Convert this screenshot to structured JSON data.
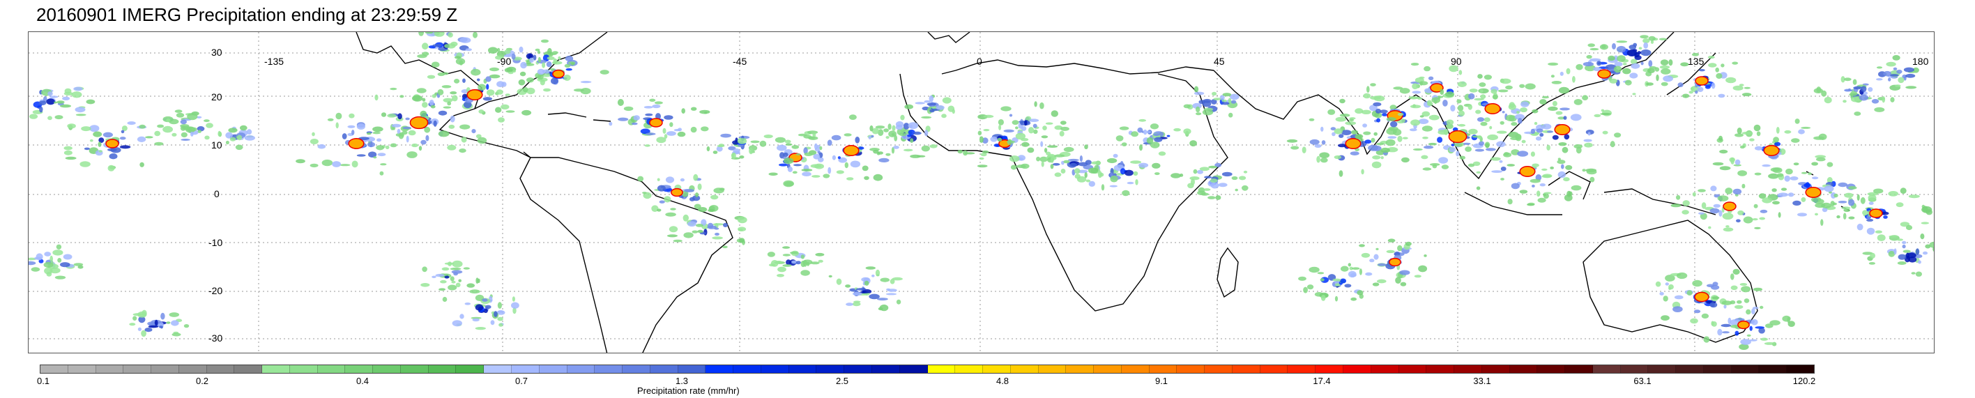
{
  "title": "20160901 IMERG Precipitation ending at 23:29:59 Z",
  "map": {
    "lon_labels": [
      "-135",
      "-90",
      "-45",
      "0",
      "45",
      "90",
      "135",
      "180"
    ],
    "lat_labels": [
      "30",
      "20",
      "10",
      "0",
      "-10",
      "-20",
      "-30"
    ],
    "grid_style": "dotted"
  },
  "colorbar": {
    "title": "Precipitation rate (mm/hr)",
    "labels": [
      "0.1",
      "0.2",
      "0.4",
      "0.7",
      "1.3",
      "2.5",
      "4.8",
      "9.1",
      "17.4",
      "33.1",
      "63.1",
      "120.2"
    ],
    "colors": [
      "#b3b3b3",
      "#b3b3b3",
      "#aaaaaa",
      "#a3a3a3",
      "#9b9b9b",
      "#929292",
      "#898989",
      "#808080",
      "#99e699",
      "#8edf8e",
      "#83d883",
      "#78d178",
      "#6dca6d",
      "#62c362",
      "#57bc57",
      "#4cb54c",
      "#b3c6ff",
      "#a3b8ff",
      "#93aaf7",
      "#839cf0",
      "#738ee9",
      "#6380e2",
      "#5372db",
      "#4364d4",
      "#0033ff",
      "#002ef2",
      "#0029e5",
      "#0024d8",
      "#001fcb",
      "#001abe",
      "#0015b1",
      "#0010a4",
      "#ffff00",
      "#ffee00",
      "#ffdd00",
      "#ffcc00",
      "#ffbb00",
      "#ffaa00",
      "#ff9900",
      "#ff8800",
      "#ff7700",
      "#ff6600",
      "#ff5500",
      "#ff4400",
      "#ff3300",
      "#ff2200",
      "#ff1100",
      "#ee0000",
      "#cc0000",
      "#bb0000",
      "#aa0000",
      "#990000",
      "#880000",
      "#770000",
      "#660000",
      "#550000",
      "#663333",
      "#5c2a2a",
      "#522222",
      "#481a1a",
      "#3e1313",
      "#340c0c",
      "#2a0606",
      "#200000"
    ]
  }
}
